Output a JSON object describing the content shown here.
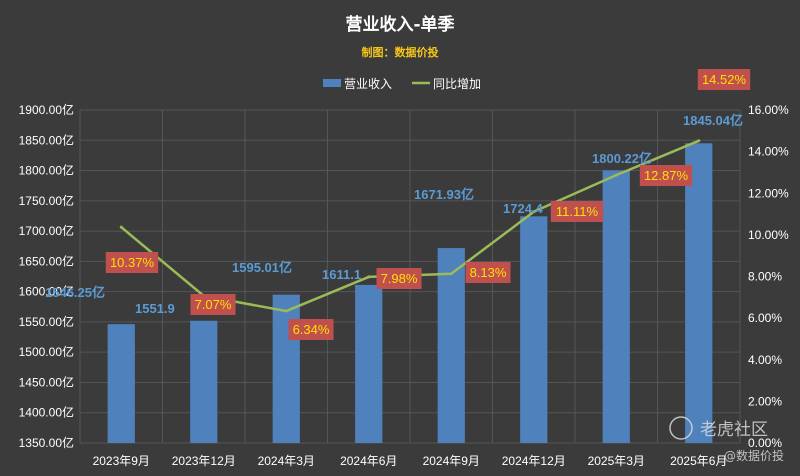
{
  "chart_data": {
    "type": "bar",
    "title": "营业收入-单季",
    "subtitle": "制图：数据价投",
    "categories": [
      "2023年9月",
      "2023年12月",
      "2024年3月",
      "2024年6月",
      "2024年9月",
      "2024年12月",
      "2025年3月",
      "2025年6月"
    ],
    "series": [
      {
        "name": "营业收入",
        "type": "bar",
        "axis": "left",
        "values": [
          1546.25,
          1551.9,
          1595.01,
          1611.1,
          1671.93,
          1724.4,
          1800.22,
          1845.04
        ],
        "labels": [
          "1546.25亿",
          "1551.9",
          "1595.01亿",
          "1611.1",
          "1671.93亿",
          "1724.4",
          "1800.22亿",
          "1845.04亿"
        ],
        "color": "#4f81bd"
      },
      {
        "name": "同比增加",
        "type": "line",
        "axis": "right",
        "values": [
          10.37,
          7.07,
          6.34,
          7.98,
          8.13,
          11.11,
          12.87,
          14.52
        ],
        "labels": [
          "10.37%",
          "7.07%",
          "6.34%",
          "7.98%",
          "8.13%",
          "11.11%",
          "12.87%",
          "14.52%"
        ],
        "color": "#9bbb59"
      }
    ],
    "y_left": {
      "min": 1350,
      "max": 1900,
      "step": 50,
      "tick_labels": [
        "1350.00亿",
        "1400.00亿",
        "1450.00亿",
        "1500.00亿",
        "1550.00亿",
        "1600.00亿",
        "1650.00亿",
        "1700.00亿",
        "1750.00亿",
        "1800.00亿",
        "1850.00亿",
        "1900.00亿"
      ]
    },
    "y_right": {
      "min": 0,
      "max": 16,
      "step": 2,
      "tick_labels": [
        "0.00%",
        "2.00%",
        "4.00%",
        "6.00%",
        "8.00%",
        "10.00%",
        "12.00%",
        "14.00%",
        "16.00%"
      ]
    },
    "grid": true,
    "legend_position": "top",
    "colors": {
      "background": "#3b3b3b",
      "label_box": "#c0504d",
      "pct_text": "#ffe000",
      "bar_label": "#5b9bd5",
      "subtitle": "#f5c518"
    }
  },
  "watermark": {
    "brand": "老虎社区",
    "account": "@数据价投"
  }
}
